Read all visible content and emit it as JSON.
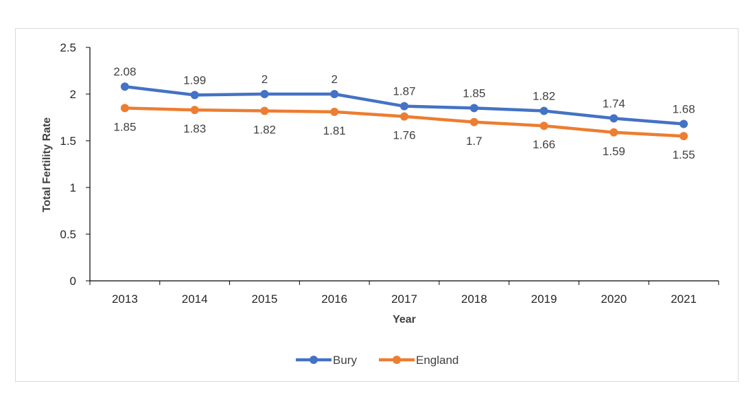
{
  "chart_data": {
    "type": "line",
    "title": "",
    "xlabel": "Year",
    "ylabel": "Total Fertility Rate",
    "categories": [
      "2013",
      "2014",
      "2015",
      "2016",
      "2017",
      "2018",
      "2019",
      "2020",
      "2021"
    ],
    "ylim": [
      0,
      2.5
    ],
    "yticks": [
      "0",
      "0.5",
      "1",
      "1.5",
      "2",
      "2.5"
    ],
    "grid": false,
    "legend_position": "bottom",
    "series": [
      {
        "name": "Bury",
        "color": "#4472c4",
        "label_position": "above",
        "values": [
          2.08,
          1.99,
          2,
          2,
          1.87,
          1.85,
          1.82,
          1.74,
          1.68
        ],
        "labels": [
          "2.08",
          "1.99",
          "2",
          "2",
          "1.87",
          "1.85",
          "1.82",
          "1.74",
          "1.68"
        ]
      },
      {
        "name": "England",
        "color": "#ed7d31",
        "label_position": "below",
        "values": [
          1.85,
          1.83,
          1.82,
          1.81,
          1.76,
          1.7,
          1.66,
          1.59,
          1.55
        ],
        "labels": [
          "1.85",
          "1.83",
          "1.82",
          "1.81",
          "1.76",
          "1.7",
          "1.66",
          "1.59",
          "1.55"
        ]
      }
    ]
  }
}
